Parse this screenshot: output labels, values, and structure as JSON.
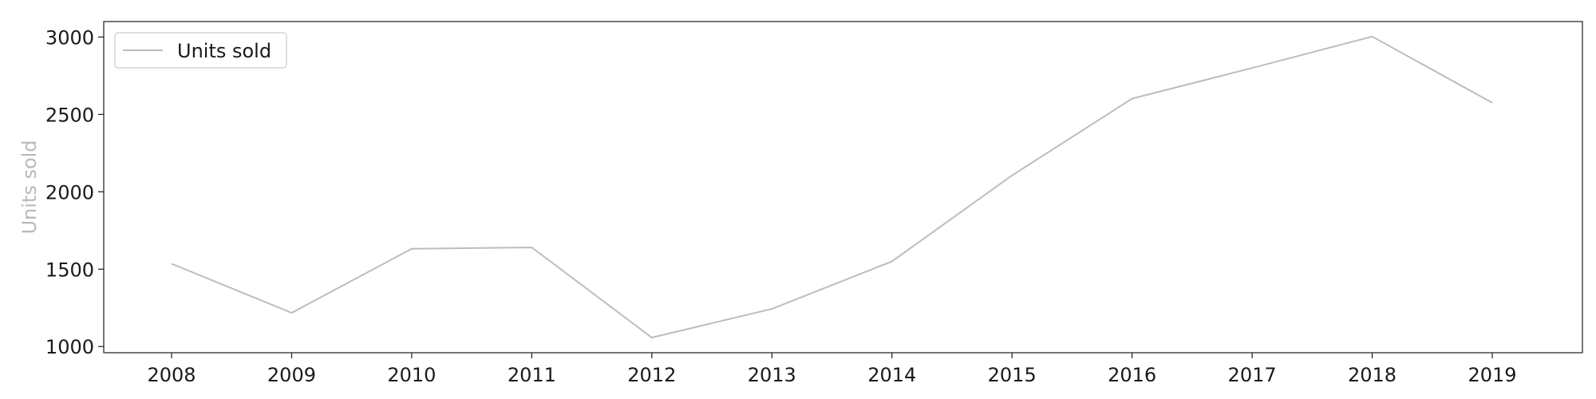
{
  "chart_data": {
    "type": "line",
    "title": "",
    "xlabel": "",
    "ylabel": "Units sold",
    "x": [
      "2008",
      "2009",
      "2010",
      "2011",
      "2012",
      "2013",
      "2014",
      "2015",
      "2016",
      "2017",
      "2018",
      "2019"
    ],
    "series": [
      {
        "name": "Units sold",
        "values": [
          1535,
          1218,
          1632,
          1640,
          1058,
          1243,
          1550,
          2106,
          2602,
          2800,
          3003,
          2575
        ],
        "color": "#bdbdbd"
      }
    ],
    "yticks": [
      1000,
      1500,
      2000,
      2500,
      3000
    ],
    "ylim": [
      960,
      3100
    ],
    "grid": false,
    "legend": "top-left",
    "colors": {
      "line": "#bdbdbd",
      "axis": "#1a1a1a",
      "ylabel": "#b9b9b9"
    }
  }
}
